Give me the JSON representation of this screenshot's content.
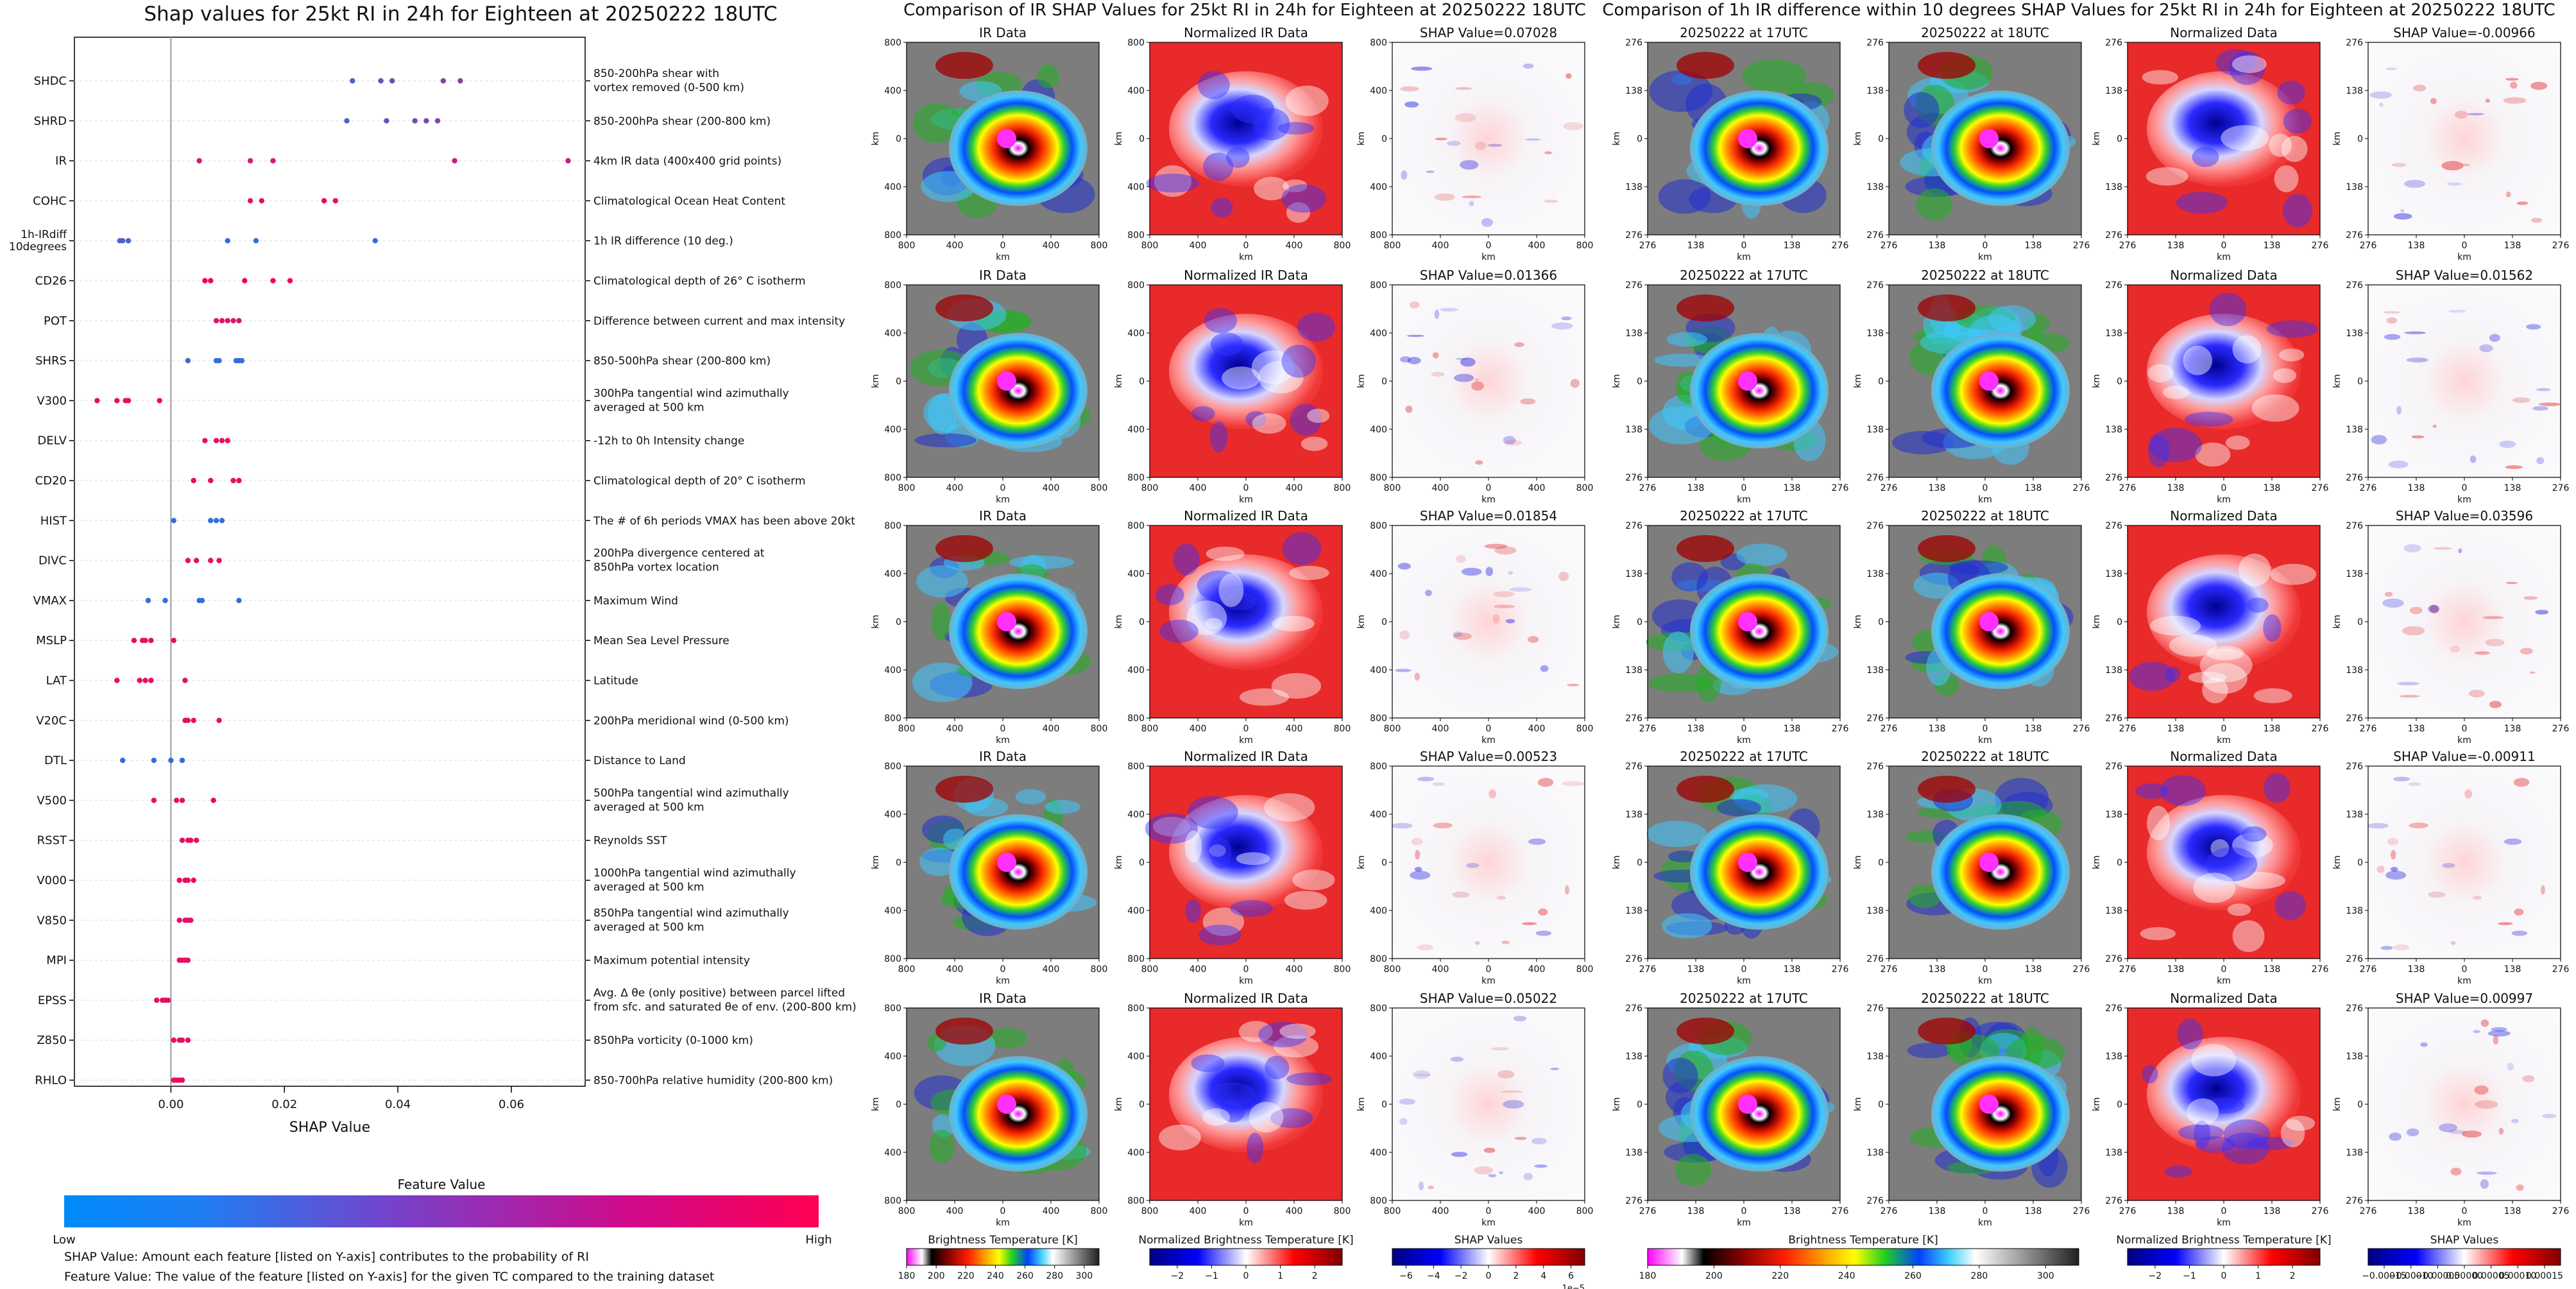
{
  "chart_data": [
    {
      "type": "scatter",
      "title": "Shap values for 25kt RI in 24h for Eighteen at 20250222 18UTC",
      "xlabel": "SHAP Value",
      "xlim": [
        -0.017,
        0.073
      ],
      "x_ticks": [
        "0.00",
        "0.02",
        "0.04",
        "0.06"
      ],
      "x_tick_values": [
        0.0,
        0.02,
        0.04,
        0.06
      ],
      "feature_value_colorbar": {
        "label": "Feature Value",
        "low": "Low",
        "high": "High",
        "low_color": "#008bfb",
        "high_color": "#ff0052"
      },
      "footnotes": [
        "SHAP Value: Amount each feature [listed on Y-axis] contributes to the probability of RI",
        "Feature Value: The value of the feature [listed on Y-axis] for the given TC compared to the training dataset"
      ],
      "features": [
        {
          "name": "SHDC",
          "desc": [
            "850-200hPa shear with",
            "vortex removed (0-500 km)"
          ],
          "points": [
            [
              0.032,
              0.3
            ],
            [
              0.037,
              0.4
            ],
            [
              0.039,
              0.45
            ],
            [
              0.048,
              0.5
            ],
            [
              0.051,
              0.55
            ]
          ]
        },
        {
          "name": "SHRD",
          "desc": [
            "850-200hPa shear (200-800 km)"
          ],
          "points": [
            [
              0.031,
              0.3
            ],
            [
              0.038,
              0.4
            ],
            [
              0.043,
              0.45
            ],
            [
              0.045,
              0.45
            ],
            [
              0.047,
              0.5
            ]
          ]
        },
        {
          "name": "IR",
          "desc": [
            "4km IR data (400x400 grid points)"
          ],
          "points": [
            [
              0.005,
              0.8
            ],
            [
              0.014,
              0.8
            ],
            [
              0.018,
              0.8
            ],
            [
              0.05,
              0.75
            ],
            [
              0.07,
              0.75
            ]
          ]
        },
        {
          "name": "COHC",
          "desc": [
            "Climatological Ocean Heat Content"
          ],
          "points": [
            [
              0.014,
              0.9
            ],
            [
              0.016,
              0.9
            ],
            [
              0.027,
              0.9
            ],
            [
              0.029,
              0.9
            ]
          ]
        },
        {
          "name": "1h-IRdiff 10degrees",
          "desc": [
            "1h IR difference (10 deg.)"
          ],
          "points": [
            [
              -0.009,
              0.3
            ],
            [
              -0.0085,
              0.3
            ],
            [
              -0.0075,
              0.3
            ],
            [
              0.01,
              0.2
            ],
            [
              0.015,
              0.2
            ],
            [
              0.036,
              0.2
            ]
          ]
        },
        {
          "name": "CD26",
          "desc": [
            "Climatological depth of 26° C isotherm"
          ],
          "points": [
            [
              0.006,
              0.95
            ],
            [
              0.007,
              0.95
            ],
            [
              0.013,
              0.95
            ],
            [
              0.018,
              0.95
            ],
            [
              0.021,
              0.95
            ]
          ]
        },
        {
          "name": "POT",
          "desc": [
            "Difference between current and max intensity"
          ],
          "points": [
            [
              0.008,
              0.85
            ],
            [
              0.009,
              0.85
            ],
            [
              0.01,
              0.85
            ],
            [
              0.011,
              0.85
            ],
            [
              0.012,
              0.85
            ]
          ]
        },
        {
          "name": "SHRS",
          "desc": [
            "850-500hPa shear (200-800 km)"
          ],
          "points": [
            [
              0.003,
              0.3
            ],
            [
              0.008,
              0.2
            ],
            [
              0.0085,
              0.2
            ],
            [
              0.0115,
              0.2
            ],
            [
              0.012,
              0.2
            ],
            [
              0.0125,
              0.2
            ]
          ]
        },
        {
          "name": "V300",
          "desc": [
            "300hPa tangential wind azimuthally",
            "averaged at 500 km"
          ],
          "points": [
            [
              -0.013,
              0.9
            ],
            [
              -0.0095,
              0.9
            ],
            [
              -0.008,
              0.9
            ],
            [
              -0.0075,
              0.9
            ],
            [
              -0.002,
              0.9
            ]
          ]
        },
        {
          "name": "DELV",
          "desc": [
            "-12h to 0h Intensity change"
          ],
          "points": [
            [
              0.006,
              0.9
            ],
            [
              0.008,
              0.9
            ],
            [
              0.009,
              0.9
            ],
            [
              0.01,
              0.9
            ]
          ]
        },
        {
          "name": "CD20",
          "desc": [
            "Climatological depth of 20° C isotherm"
          ],
          "points": [
            [
              0.004,
              0.9
            ],
            [
              0.007,
              0.9
            ],
            [
              0.011,
              0.9
            ],
            [
              0.012,
              0.9
            ]
          ]
        },
        {
          "name": "HIST",
          "desc": [
            "The # of 6h periods VMAX has been above 20kt"
          ],
          "points": [
            [
              0.0005,
              0.2
            ],
            [
              0.007,
              0.2
            ],
            [
              0.008,
              0.2
            ],
            [
              0.009,
              0.2
            ]
          ]
        },
        {
          "name": "DIVC",
          "desc": [
            "200hPa divergence centered at",
            "850hPa vortex location"
          ],
          "points": [
            [
              0.003,
              0.9
            ],
            [
              0.0045,
              0.9
            ],
            [
              0.007,
              0.9
            ],
            [
              0.0085,
              0.9
            ]
          ]
        },
        {
          "name": "VMAX",
          "desc": [
            "Maximum Wind"
          ],
          "points": [
            [
              -0.004,
              0.2
            ],
            [
              -0.001,
              0.2
            ],
            [
              0.005,
              0.2
            ],
            [
              0.0055,
              0.2
            ],
            [
              0.012,
              0.2
            ]
          ]
        },
        {
          "name": "MSLP",
          "desc": [
            "Mean Sea Level Pressure"
          ],
          "points": [
            [
              -0.0065,
              0.9
            ],
            [
              -0.005,
              0.9
            ],
            [
              -0.0045,
              0.9
            ],
            [
              -0.0035,
              0.9
            ],
            [
              0.0005,
              0.9
            ]
          ]
        },
        {
          "name": "LAT",
          "desc": [
            "Latitude"
          ],
          "points": [
            [
              -0.0095,
              0.9
            ],
            [
              -0.0055,
              0.9
            ],
            [
              -0.0045,
              0.9
            ],
            [
              -0.0035,
              0.9
            ],
            [
              0.0025,
              0.9
            ]
          ]
        },
        {
          "name": "V20C",
          "desc": [
            "200hPa meridional wind (0-500 km)"
          ],
          "points": [
            [
              0.0025,
              0.9
            ],
            [
              0.003,
              0.9
            ],
            [
              0.004,
              0.9
            ],
            [
              0.0085,
              0.9
            ]
          ]
        },
        {
          "name": "DTL",
          "desc": [
            "Distance to Land"
          ],
          "points": [
            [
              -0.0085,
              0.2
            ],
            [
              -0.003,
              0.2
            ],
            [
              0.0,
              0.2
            ],
            [
              0.002,
              0.2
            ]
          ]
        },
        {
          "name": "V500",
          "desc": [
            "500hPa tangential wind azimuthally",
            "averaged at 500 km"
          ],
          "points": [
            [
              -0.003,
              0.9
            ],
            [
              0.001,
              0.9
            ],
            [
              0.002,
              0.9
            ],
            [
              0.0075,
              0.9
            ]
          ]
        },
        {
          "name": "RSST",
          "desc": [
            "Reynolds SST"
          ],
          "points": [
            [
              0.002,
              0.9
            ],
            [
              0.003,
              0.9
            ],
            [
              0.0035,
              0.9
            ],
            [
              0.0045,
              0.9
            ]
          ]
        },
        {
          "name": "V000",
          "desc": [
            "1000hPa tangential wind azimuthally",
            "averaged at 500 km"
          ],
          "points": [
            [
              0.0015,
              0.9
            ],
            [
              0.0025,
              0.9
            ],
            [
              0.003,
              0.9
            ],
            [
              0.004,
              0.9
            ]
          ]
        },
        {
          "name": "V850",
          "desc": [
            "850hPa tangential wind azimuthally",
            "averaged at 500 km"
          ],
          "points": [
            [
              0.0015,
              0.9
            ],
            [
              0.0025,
              0.9
            ],
            [
              0.003,
              0.9
            ],
            [
              0.0035,
              0.9
            ]
          ]
        },
        {
          "name": "MPI",
          "desc": [
            "Maximum potential intensity"
          ],
          "points": [
            [
              0.0015,
              0.9
            ],
            [
              0.002,
              0.9
            ],
            [
              0.0025,
              0.9
            ],
            [
              0.003,
              0.9
            ]
          ]
        },
        {
          "name": "EPSS",
          "desc": [
            "Avg. Δ θe (only positive) between parcel lifted",
            "from sfc. and saturated θe of env. (200-800 km)"
          ],
          "points": [
            [
              -0.0025,
              0.9
            ],
            [
              -0.0015,
              0.9
            ],
            [
              -0.001,
              0.9
            ],
            [
              -0.0005,
              0.9
            ]
          ]
        },
        {
          "name": "Z850",
          "desc": [
            "850hPa vorticity (0-1000 km)"
          ],
          "points": [
            [
              0.0005,
              0.9
            ],
            [
              0.0015,
              0.9
            ],
            [
              0.002,
              0.9
            ],
            [
              0.003,
              0.9
            ]
          ]
        },
        {
          "name": "RHLO",
          "desc": [
            "850-700hPa relative humidity (200-800 km)"
          ],
          "points": [
            [
              0.0005,
              0.9
            ],
            [
              0.001,
              0.9
            ],
            [
              0.0015,
              0.9
            ],
            [
              0.002,
              0.9
            ]
          ]
        }
      ]
    },
    {
      "type": "heatmap",
      "title": "Comparison of IR SHAP Values for 25kt RI in 24h for Eighteen at 20250222 18UTC",
      "col_titles": [
        "IR Data",
        "Normalized IR Data"
      ],
      "shap_titles": [
        "SHAP Value=0.07028",
        "SHAP Value=0.01366",
        "SHAP Value=0.01854",
        "SHAP Value=0.00523",
        "SHAP Value=0.05022"
      ],
      "axis_label": "km",
      "ticks": [
        "800",
        "400",
        "0",
        "400",
        "800"
      ],
      "colorbars": [
        {
          "label": "Brightness Temperature [K]",
          "ticks": [
            "180",
            "200",
            "220",
            "240",
            "260",
            "280",
            "300"
          ],
          "range": [
            180,
            310
          ]
        },
        {
          "label": "Normalized Brightness Temperature [K]",
          "ticks": [
            "−2",
            "−1",
            "0",
            "1",
            "2"
          ],
          "range": [
            -2.8,
            2.8
          ]
        },
        {
          "label": "SHAP Values",
          "ticks": [
            "−6",
            "−4",
            "−2",
            "0",
            "2",
            "4",
            "6"
          ],
          "range": [
            -7,
            7
          ],
          "exponent": "1e−5"
        }
      ]
    },
    {
      "type": "heatmap",
      "title": "Comparison of 1h IR difference within 10 degrees SHAP Values for 25kt RI in 24h for Eighteen at 20250222 18UTC",
      "col_titles": [
        "20250222 at 17UTC",
        "20250222 at 18UTC",
        "Normalized Data"
      ],
      "shap_titles": [
        "SHAP Value=-0.00966",
        "SHAP Value=0.01562",
        "SHAP Value=0.03596",
        "SHAP Value=-0.00911",
        "SHAP Value=0.00997"
      ],
      "axis_label": "km",
      "ticks": [
        "276",
        "138",
        "0",
        "138",
        "276"
      ],
      "colorbars": [
        {
          "label": "Brightness Temperature [K]",
          "ticks": [
            "180",
            "200",
            "220",
            "240",
            "260",
            "280",
            "300"
          ],
          "range": [
            180,
            310
          ]
        },
        {
          "label": "Normalized Brightness Temperature [K]",
          "ticks": [
            "−2",
            "−1",
            "0",
            "1",
            "2"
          ],
          "range": [
            -2.8,
            2.8
          ]
        },
        {
          "label": "SHAP Values",
          "ticks": [
            "−0.00015",
            "−0.00010",
            "−0.00005",
            "0.00000",
            "0.00005",
            "0.00010",
            "0.00015"
          ],
          "range": [
            -0.00018,
            0.00018
          ]
        }
      ]
    }
  ]
}
